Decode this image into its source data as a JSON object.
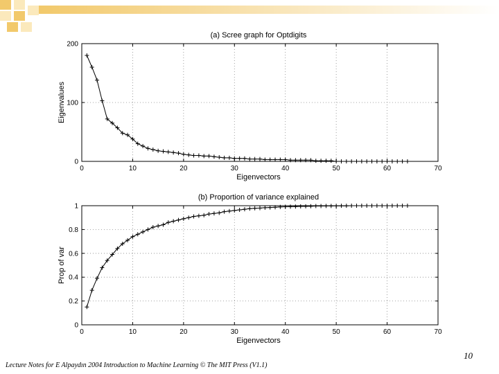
{
  "slide": {
    "page_number": "10",
    "footer": "Lecture Notes for E Alpaydın 2004 Introduction to Machine Learning © The MIT Press (V1.1)",
    "accent_color": "#f2c96b",
    "accent_light": "#fbe9bc"
  },
  "chart_data": [
    {
      "type": "line",
      "title": "(a) Scree graph for Optdigits",
      "xlabel": "Eigenvectors",
      "ylabel": "Eigenvalues",
      "xlim": [
        0,
        70
      ],
      "ylim": [
        0,
        200
      ],
      "xticks": [
        "0",
        "10",
        "20",
        "30",
        "40",
        "50",
        "60",
        "70"
      ],
      "yticks": [
        "0",
        "100",
        "200"
      ],
      "grid": true,
      "marker": "+",
      "series": [
        {
          "x": [
            1,
            2,
            3,
            4,
            5,
            6,
            7,
            8,
            9,
            10,
            11,
            12,
            13,
            14,
            15,
            16,
            17,
            18,
            19,
            20,
            21,
            22,
            23,
            24,
            25,
            26,
            27,
            28,
            29,
            30,
            31,
            32,
            33,
            34,
            35,
            36,
            37,
            38,
            39,
            40,
            41,
            42,
            43,
            44,
            45,
            46,
            47,
            48,
            49,
            50,
            51,
            52,
            53,
            54,
            55,
            56,
            57,
            58,
            59,
            60,
            61,
            62,
            63,
            64
          ],
          "y": [
            180,
            160,
            138,
            103,
            72,
            65,
            57,
            48,
            45,
            38,
            30,
            26,
            22,
            20,
            18,
            17,
            16,
            15,
            14,
            12,
            11,
            10,
            10,
            9,
            9,
            8,
            7,
            6,
            6,
            5,
            5,
            5,
            4,
            4,
            4,
            3,
            3,
            3,
            3,
            3,
            2,
            2,
            2,
            2,
            2,
            1,
            1,
            1,
            1,
            0,
            0,
            0,
            0,
            0,
            0,
            0,
            0,
            0,
            0,
            0,
            0,
            0,
            0,
            0
          ]
        }
      ]
    },
    {
      "type": "line",
      "title": "(b) Proportion of variance explained",
      "xlabel": "Eigenvectors",
      "ylabel": "Prop of var",
      "xlim": [
        0,
        70
      ],
      "ylim": [
        0,
        1
      ],
      "xticks": [
        "0",
        "10",
        "20",
        "30",
        "40",
        "50",
        "60",
        "70"
      ],
      "yticks": [
        "0",
        "0.2",
        "0.4",
        "0.6",
        "0.8",
        "1"
      ],
      "grid": true,
      "marker": "+",
      "series": [
        {
          "x": [
            1,
            2,
            3,
            4,
            5,
            6,
            7,
            8,
            9,
            10,
            11,
            12,
            13,
            14,
            15,
            16,
            17,
            18,
            19,
            20,
            21,
            22,
            23,
            24,
            25,
            26,
            27,
            28,
            29,
            30,
            31,
            32,
            33,
            34,
            35,
            36,
            37,
            38,
            39,
            40,
            41,
            42,
            43,
            44,
            45,
            46,
            47,
            48,
            49,
            50,
            51,
            52,
            53,
            54,
            55,
            56,
            57,
            58,
            59,
            60,
            61,
            62,
            63,
            64
          ],
          "y": [
            0.15,
            0.29,
            0.39,
            0.48,
            0.54,
            0.59,
            0.64,
            0.68,
            0.71,
            0.74,
            0.76,
            0.78,
            0.8,
            0.82,
            0.83,
            0.84,
            0.86,
            0.87,
            0.88,
            0.89,
            0.9,
            0.91,
            0.915,
            0.92,
            0.93,
            0.935,
            0.94,
            0.95,
            0.955,
            0.96,
            0.965,
            0.97,
            0.975,
            0.978,
            0.98,
            0.983,
            0.985,
            0.987,
            0.99,
            0.991,
            0.992,
            0.993,
            0.994,
            0.995,
            0.996,
            0.997,
            0.997,
            0.998,
            0.998,
            0.999,
            0.999,
            0.999,
            1,
            1,
            1,
            1,
            1,
            1,
            1,
            1,
            1,
            1,
            1,
            1
          ]
        }
      ]
    }
  ]
}
